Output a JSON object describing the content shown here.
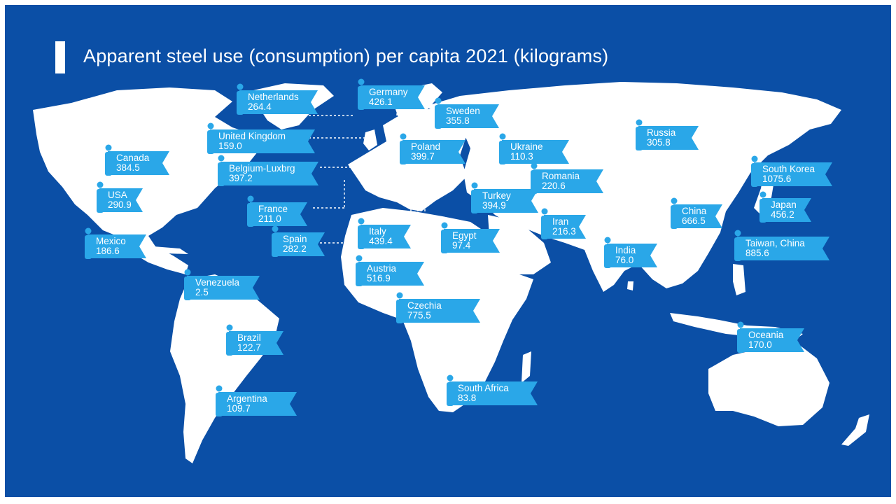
{
  "title": "Apparent steel use (consumption) per capita 2021 (kilograms)",
  "colors": {
    "ocean": "#0b4fa6",
    "land": "#ffffff",
    "label": "#2aa7e8",
    "text": "#ffffff"
  },
  "countries": [
    {
      "name": "Netherlands",
      "value": "264.4"
    },
    {
      "name": "Germany",
      "value": "426.1"
    },
    {
      "name": "Sweden",
      "value": "355.8"
    },
    {
      "name": "United Kingdom",
      "value": "159.0"
    },
    {
      "name": "Poland",
      "value": "399.7"
    },
    {
      "name": "Ukraine",
      "value": "110.3"
    },
    {
      "name": "Russia",
      "value": "305.8"
    },
    {
      "name": "Canada",
      "value": "384.5"
    },
    {
      "name": "Belgium-Luxbrg",
      "value": "397.2"
    },
    {
      "name": "Romania",
      "value": "220.6"
    },
    {
      "name": "South Korea",
      "value": "1075.6"
    },
    {
      "name": "USA",
      "value": "290.9"
    },
    {
      "name": "Turkey",
      "value": "394.9"
    },
    {
      "name": "Japan",
      "value": "456.2"
    },
    {
      "name": "France",
      "value": "211.0"
    },
    {
      "name": "China",
      "value": "666.5"
    },
    {
      "name": "Iran",
      "value": "216.3"
    },
    {
      "name": "Italy",
      "value": "439.4"
    },
    {
      "name": "Spain",
      "value": "282.2"
    },
    {
      "name": "Egypt",
      "value": "97.4"
    },
    {
      "name": "Mexico",
      "value": "186.6"
    },
    {
      "name": "Taiwan, China",
      "value": "885.6"
    },
    {
      "name": "India",
      "value": "76.0"
    },
    {
      "name": "Austria",
      "value": "516.9"
    },
    {
      "name": "Venezuela",
      "value": "2.5"
    },
    {
      "name": "Czechia",
      "value": "775.5"
    },
    {
      "name": "Oceania",
      "value": "170.0"
    },
    {
      "name": "Brazil",
      "value": "122.7"
    },
    {
      "name": "South Africa",
      "value": "83.8"
    },
    {
      "name": "Argentina",
      "value": "109.7"
    }
  ]
}
